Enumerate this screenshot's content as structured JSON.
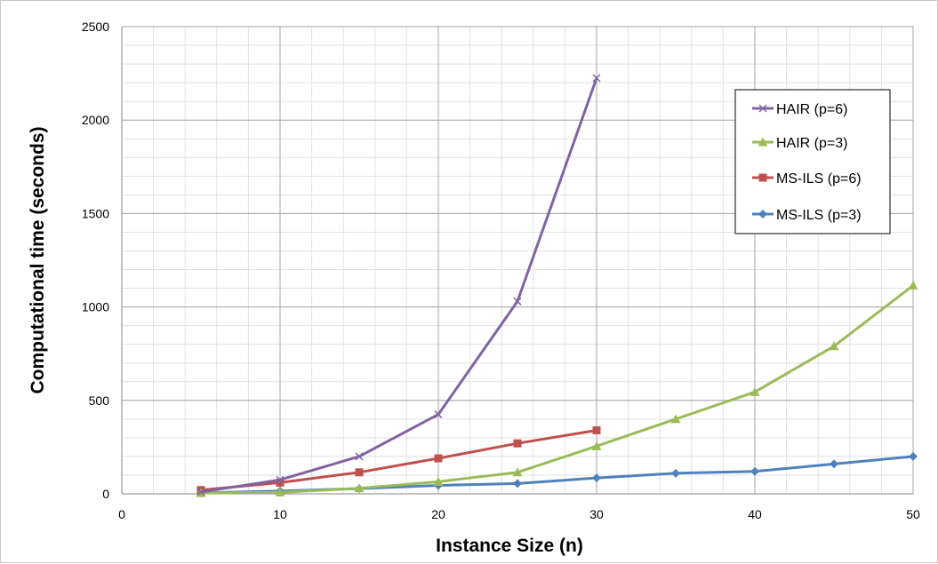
{
  "chart_data": {
    "type": "line",
    "title": "",
    "xlabel": "Instance Size (n)",
    "ylabel": "Computational time (seconds)",
    "xlim": [
      0,
      50
    ],
    "ylim": [
      0,
      2500
    ],
    "x_ticks": [
      "0",
      "10",
      "20",
      "30",
      "40",
      "50"
    ],
    "y_ticks": [
      "0",
      "500",
      "1000",
      "1500",
      "2000",
      "2500"
    ],
    "grid": true,
    "legend_position": "top-right",
    "series": [
      {
        "name": "HAIR (p=6)",
        "color": "#8064a2",
        "marker": "x",
        "x": [
          5,
          10,
          15,
          20,
          25,
          30
        ],
        "values": [
          10,
          75,
          200,
          425,
          1030,
          2225
        ]
      },
      {
        "name": "HAIR (p=3)",
        "color": "#9bbb59",
        "marker": "triangle",
        "x": [
          5,
          10,
          15,
          20,
          25,
          30,
          35,
          40,
          45,
          50
        ],
        "values": [
          5,
          8,
          30,
          65,
          115,
          255,
          400,
          545,
          790,
          1115
        ]
      },
      {
        "name": "MS-ILS (p=6)",
        "color": "#c0504d",
        "marker": "square",
        "x": [
          5,
          10,
          15,
          20,
          25,
          30
        ],
        "values": [
          20,
          60,
          115,
          190,
          270,
          340
        ]
      },
      {
        "name": "MS-ILS (p=3)",
        "color": "#4f81bd",
        "marker": "diamond",
        "x": [
          5,
          10,
          15,
          20,
          25,
          30,
          35,
          40,
          45,
          50
        ],
        "values": [
          5,
          15,
          28,
          45,
          55,
          85,
          110,
          120,
          160,
          200
        ]
      }
    ]
  }
}
